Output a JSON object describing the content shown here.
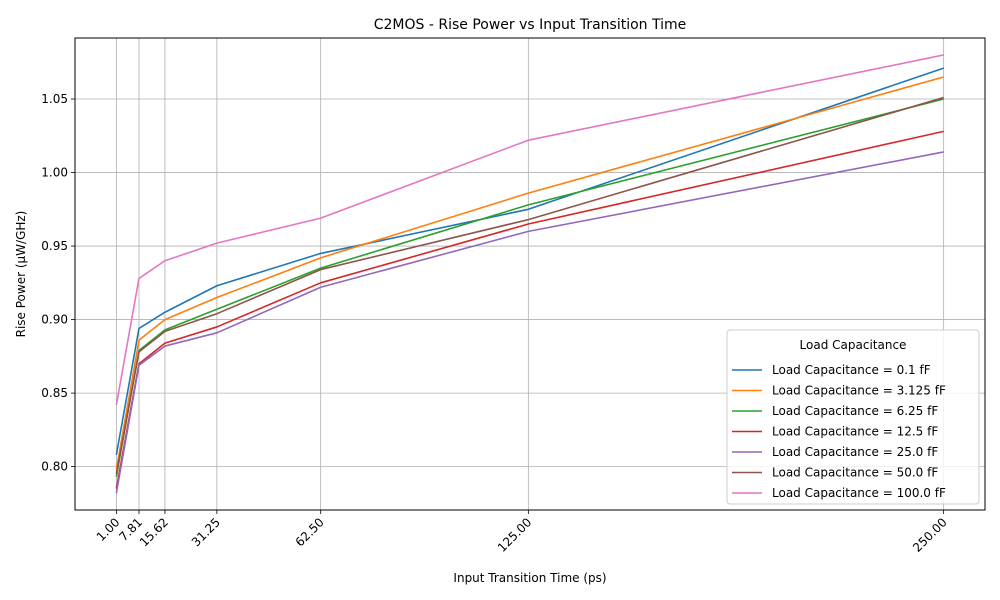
{
  "chart_data": {
    "type": "line",
    "title": "C2MOS - Rise Power vs Input Transition Time",
    "xlabel": "Input Transition Time (ps)",
    "ylabel": "Rise Power (µW/GHz)",
    "x": [
      1.0,
      7.81,
      15.62,
      31.25,
      62.5,
      125.0,
      250.0
    ],
    "x_tick_labels": [
      "1.00",
      "7.81",
      "15.62",
      "31.25",
      "62.50",
      "125.00",
      "250.00"
    ],
    "y_ticks": [
      0.8,
      0.85,
      0.9,
      0.95,
      1.0,
      1.05
    ],
    "y_tick_labels": [
      "0.80",
      "0.85",
      "0.90",
      "0.95",
      "1.00",
      "1.05"
    ],
    "xlim": [
      -11.45,
      262.45
    ],
    "ylim": [
      0.7705,
      1.0915
    ],
    "grid": true,
    "legend_title": "Load Capacitance",
    "legend_position": "lower right",
    "series": [
      {
        "name": "Load Capacitance = 0.1 fF",
        "color": "#1f77b4",
        "values": [
          0.808,
          0.894,
          0.905,
          0.923,
          0.945,
          0.975,
          1.071
        ]
      },
      {
        "name": "Load Capacitance = 3.125 fF",
        "color": "#ff7f0e",
        "values": [
          0.798,
          0.886,
          0.9,
          0.915,
          0.942,
          0.986,
          1.065
        ]
      },
      {
        "name": "Load Capacitance = 6.25 fF",
        "color": "#2ca02c",
        "values": [
          0.793,
          0.879,
          0.893,
          0.907,
          0.935,
          0.978,
          1.05
        ]
      },
      {
        "name": "Load Capacitance = 12.5 fF",
        "color": "#d62728",
        "values": [
          0.785,
          0.87,
          0.884,
          0.895,
          0.925,
          0.965,
          1.028
        ]
      },
      {
        "name": "Load Capacitance = 25.0 fF",
        "color": "#9467bd",
        "values": [
          0.782,
          0.869,
          0.882,
          0.891,
          0.922,
          0.96,
          1.014
        ]
      },
      {
        "name": "Load Capacitance = 50.0 fF",
        "color": "#8c564b",
        "values": [
          0.795,
          0.878,
          0.892,
          0.904,
          0.934,
          0.968,
          1.051
        ]
      },
      {
        "name": "Load Capacitance = 100.0 fF",
        "color": "#e377c2",
        "values": [
          0.842,
          0.928,
          0.94,
          0.952,
          0.969,
          1.022,
          1.08
        ]
      }
    ]
  }
}
